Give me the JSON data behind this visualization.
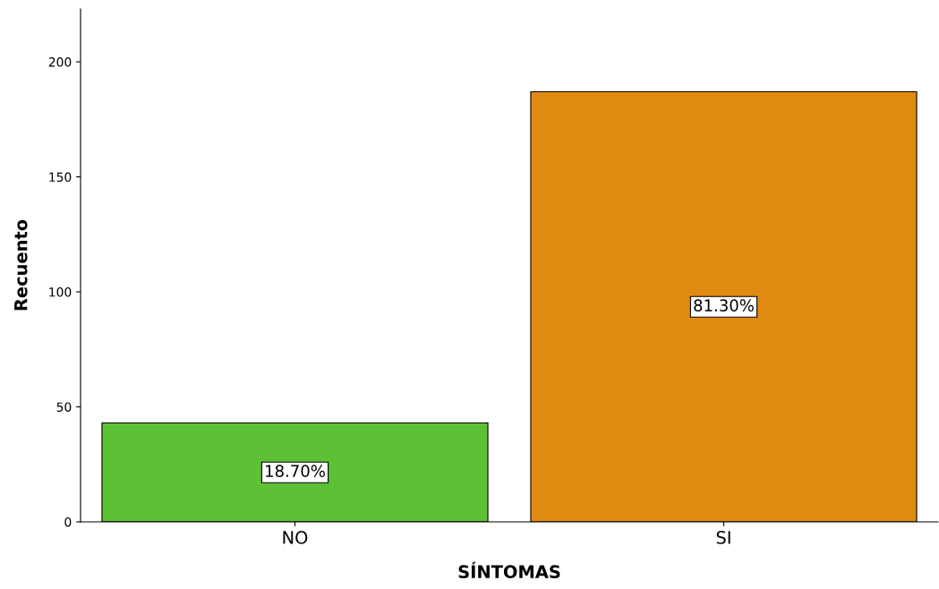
{
  "chart_data": {
    "type": "bar",
    "xlabel": "SÍNTOMAS",
    "ylabel": "Recuento",
    "categories": [
      "NO",
      "SI"
    ],
    "values": [
      43,
      187
    ],
    "colors": [
      "#5dc136",
      "#e08a12"
    ],
    "annotations": [
      "18.70%",
      "81.30%"
    ],
    "ylim": [
      0,
      223
    ],
    "yticks": [
      0,
      50,
      100,
      150,
      200
    ],
    "grid": false,
    "legend": false
  }
}
